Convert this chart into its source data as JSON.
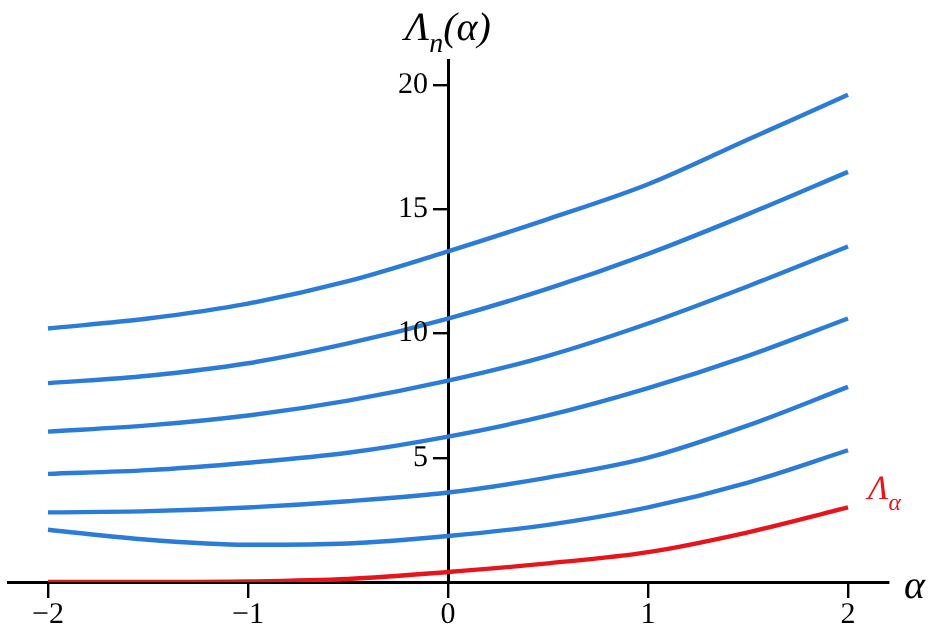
{
  "chart_data": {
    "type": "line",
    "xlabel": "α",
    "ylabel": "Λ$_{n}$(α)",
    "x": [
      -2,
      -1.5,
      -1,
      -0.5,
      0,
      0.5,
      1,
      1.5,
      2
    ],
    "xlim": [
      -2.2,
      2.2
    ],
    "xticks": [
      -2,
      -1,
      0,
      1,
      2
    ],
    "ylim": [
      0,
      21
    ],
    "yticks": [
      5,
      10,
      15,
      20
    ],
    "grid": false,
    "legend": false,
    "marker": "none",
    "line_style": "solid",
    "series": [
      {
        "color": "#2b7bd8",
        "values": [
          10.2,
          10.6,
          11.2,
          12.1,
          13.3,
          14.6,
          16.0,
          17.8,
          19.6
        ]
      },
      {
        "color": "#2b7bd8",
        "values": [
          8.0,
          8.3,
          8.8,
          9.6,
          10.6,
          11.8,
          13.2,
          14.8,
          16.5
        ]
      },
      {
        "color": "#2b7bd8",
        "values": [
          6.05,
          6.3,
          6.7,
          7.3,
          8.1,
          9.1,
          10.4,
          11.9,
          13.5
        ]
      },
      {
        "color": "#2b7bd8",
        "values": [
          4.35,
          4.5,
          4.8,
          5.2,
          5.85,
          6.7,
          7.8,
          9.1,
          10.6
        ]
      },
      {
        "color": "#2b7bd8",
        "values": [
          2.8,
          2.85,
          3.0,
          3.25,
          3.6,
          4.2,
          5.0,
          6.3,
          7.85
        ]
      },
      {
        "color": "#2b7bd8",
        "values": [
          2.1,
          1.7,
          1.5,
          1.55,
          1.85,
          2.3,
          3.0,
          4.0,
          5.3
        ]
      },
      {
        "name": "Λ$_{α}$",
        "color": "#e8141c",
        "values": [
          0,
          0,
          0.02,
          0.12,
          0.4,
          0.75,
          1.2,
          2.0,
          3.0
        ]
      }
    ]
  }
}
